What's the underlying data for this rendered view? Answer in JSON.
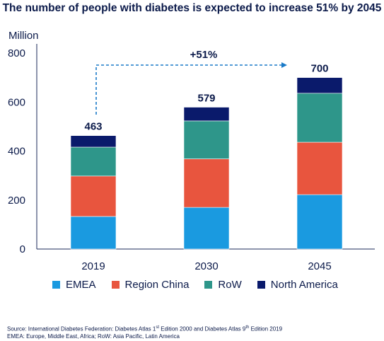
{
  "title": "The number of people with diabetes is expected to increase 51% by 2045",
  "colors": {
    "EMEA": "#1a9ae0",
    "Region China": "#e8553e",
    "RoW": "#2e968a",
    "North America": "#0a1a6b",
    "text": "#0b1a4a",
    "axis": "#1b2a5a",
    "arrow": "#1a7ac8"
  },
  "chart_data": {
    "type": "bar",
    "stacked": true,
    "ylabel": "Million",
    "ylim": [
      0,
      800
    ],
    "yticks": [
      0,
      200,
      400,
      600,
      800
    ],
    "categories": [
      "2019",
      "2030",
      "2045"
    ],
    "series": [
      {
        "name": "EMEA",
        "values": [
          133,
          170,
          222
        ]
      },
      {
        "name": "Region China",
        "values": [
          165,
          198,
          214
        ]
      },
      {
        "name": "RoW",
        "values": [
          118,
          155,
          200
        ]
      },
      {
        "name": "North America",
        "values": [
          47,
          56,
          64
        ]
      }
    ],
    "totals": [
      463,
      579,
      700
    ],
    "annotation": "+51%",
    "legend_position": "bottom",
    "grid": false
  },
  "source": {
    "line1_a": "Source: International Diabetes Federation: Diabetes Atlas 1",
    "line1_sup1": "st",
    "line1_b": " Edition 2000 and Diabetes Atlas 9",
    "line1_sup2": "th",
    "line1_c": " Edition 2019",
    "line2": "EMEA: Europe, Middle East, Africa; RoW: Asia Pacific, Latin America"
  }
}
